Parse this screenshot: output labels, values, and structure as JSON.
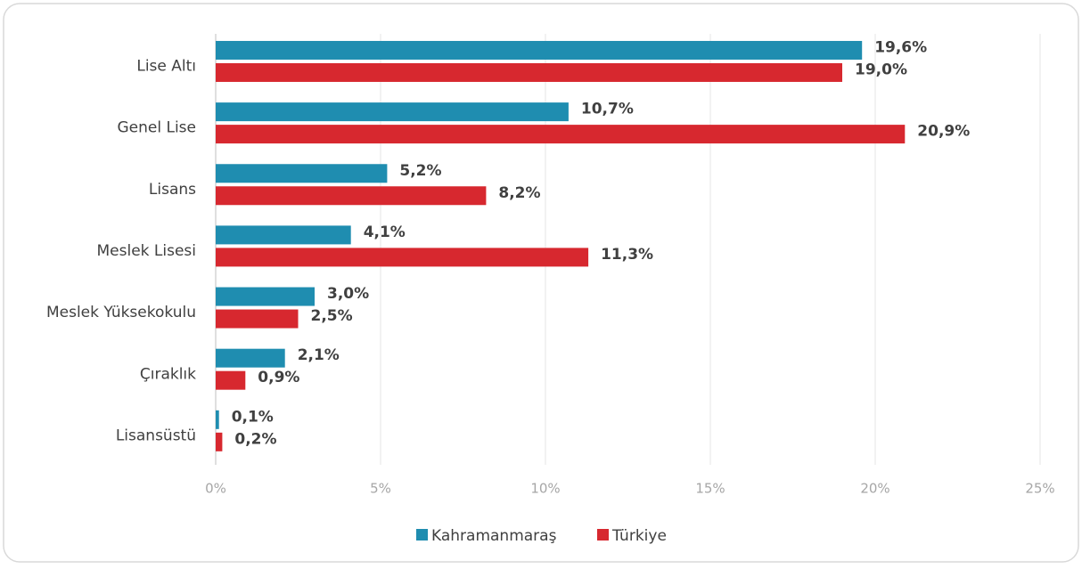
{
  "chart_data": {
    "type": "barh",
    "categories": [
      "Lise Altı",
      "Genel Lise",
      "Lisans",
      "Meslek Lisesi",
      "Meslek Yüksekokulu",
      "Çıraklık",
      "Lisansüstü"
    ],
    "series": [
      {
        "name": "Kahramanmaraş",
        "color": "#1f8db0",
        "values": [
          19.6,
          10.7,
          5.2,
          4.1,
          3.0,
          2.1,
          0.1
        ],
        "value_labels": [
          "19,6%",
          "10,7%",
          "5,2%",
          "4,1%",
          "3,0%",
          "2,1%",
          "0,1%"
        ]
      },
      {
        "name": "Türkiye",
        "color": "#d7282f",
        "values": [
          19.0,
          20.9,
          8.2,
          11.3,
          2.5,
          0.9,
          0.2
        ],
        "value_labels": [
          "19,0%",
          "20,9%",
          "8,2%",
          "11,3%",
          "2,5%",
          "0,9%",
          "0,2%"
        ]
      }
    ],
    "xlim": [
      0,
      25
    ],
    "xticks": [
      {
        "value": 0,
        "label": "0%"
      },
      {
        "value": 5,
        "label": "5%"
      },
      {
        "value": 10,
        "label": "10%"
      },
      {
        "value": 15,
        "label": "15%"
      },
      {
        "value": 20,
        "label": "20%"
      },
      {
        "value": 25,
        "label": "25%"
      }
    ],
    "grid": true,
    "legend": "bottom"
  }
}
